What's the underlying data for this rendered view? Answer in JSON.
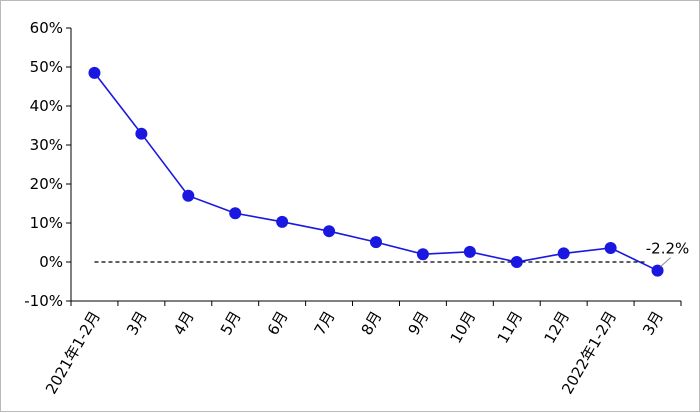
{
  "chart_data": {
    "type": "line",
    "categories": [
      "2021年1-2月",
      "3月",
      "4月",
      "5月",
      "6月",
      "7月",
      "8月",
      "9月",
      "10月",
      "11月",
      "12月",
      "2022年1-2月",
      "3月"
    ],
    "series": [
      {
        "values": [
          48.5,
          32.9,
          17.0,
          12.5,
          10.3,
          7.9,
          5.1,
          2.0,
          2.6,
          0.0,
          2.2,
          3.6,
          -2.2
        ]
      }
    ],
    "ylim": [
      -10,
      60
    ],
    "yticks": [
      -10,
      0,
      10,
      20,
      30,
      40,
      50,
      60
    ],
    "ytick_labels": [
      "-10%",
      "0%",
      "10%",
      "20%",
      "30%",
      "40%",
      "50%",
      "60%"
    ],
    "reference_line": {
      "y": 0,
      "style": "dashed"
    },
    "annotations": [
      {
        "category_index": 12,
        "text": "-2.2%"
      }
    ],
    "grid": false,
    "legend": "none",
    "colors": {
      "series": "#1a18e0",
      "axis": "#000000",
      "reference_line": "#000000"
    }
  }
}
